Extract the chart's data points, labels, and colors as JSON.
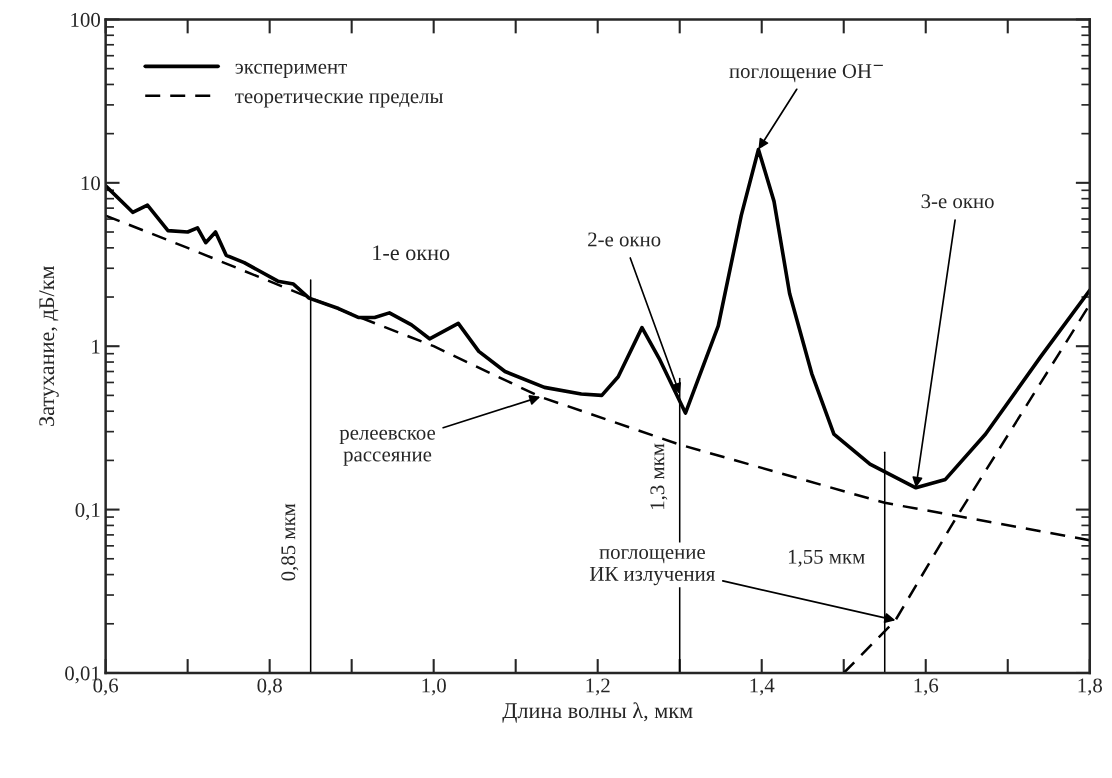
{
  "chart_data": {
    "type": "line",
    "xlabel": "Длина волны λ, мкм",
    "ylabel": "Затухание, дБ/км",
    "log": "y",
    "xlim": [
      0.6,
      1.8
    ],
    "ylim": [
      0.01,
      100
    ],
    "xticks": [
      {
        "value": 0.6,
        "label": "0,6"
      },
      {
        "value": 0.7,
        "label": null
      },
      {
        "value": 0.8,
        "label": "0,8"
      },
      {
        "value": 0.9,
        "label": null
      },
      {
        "value": 1.0,
        "label": "1,0"
      },
      {
        "value": 1.1,
        "label": null
      },
      {
        "value": 1.2,
        "label": "1,2"
      },
      {
        "value": 1.3,
        "label": null
      },
      {
        "value": 1.4,
        "label": "1,4"
      },
      {
        "value": 1.5,
        "label": null
      },
      {
        "value": 1.6,
        "label": "1,6"
      },
      {
        "value": 1.7,
        "label": null
      },
      {
        "value": 1.8,
        "label": "1,8"
      }
    ],
    "yticks": [
      {
        "value": 0.01,
        "label": "0,01"
      },
      {
        "value": 0.1,
        "label": "0,1"
      },
      1,
      10,
      100
    ],
    "grid": false,
    "legend": "top left",
    "series": [
      {
        "name": "эксперимент",
        "color": "#000000",
        "line_style": "solid",
        "x": [
          0.6,
          0.633,
          0.651,
          0.676,
          0.7,
          0.712,
          0.722,
          0.734,
          0.747,
          0.769,
          0.81,
          0.829,
          0.848,
          0.884,
          0.908,
          0.928,
          0.946,
          0.973,
          0.995,
          1.03,
          1.055,
          1.087,
          1.135,
          1.18,
          1.205,
          1.225,
          1.254,
          1.275,
          1.307,
          1.347,
          1.375,
          1.396,
          1.415,
          1.434,
          1.461,
          1.488,
          1.532,
          1.588,
          1.624,
          1.673,
          1.74,
          1.8
        ],
        "values": [
          9.6,
          6.6,
          7.3,
          5.1,
          5.0,
          5.3,
          4.3,
          5.0,
          3.6,
          3.25,
          2.5,
          2.4,
          1.97,
          1.7,
          1.5,
          1.5,
          1.6,
          1.35,
          1.11,
          1.38,
          0.93,
          0.7,
          0.56,
          0.51,
          0.5,
          0.65,
          1.3,
          0.84,
          0.39,
          1.33,
          6.3,
          16,
          7.7,
          2.1,
          0.68,
          0.29,
          0.19,
          0.136,
          0.153,
          0.29,
          0.86,
          2.2
        ]
      },
      {
        "name": "теоретические пределы",
        "color": "#000000",
        "line_style": "dashed",
        "x": [
          0.6,
          0.7,
          0.85,
          1.0,
          1.13,
          1.3,
          1.55,
          1.8
        ],
        "values": [
          6.3,
          4.0,
          1.97,
          1.0,
          0.49,
          0.25,
          0.11,
          0.065
        ]
      },
      {
        "color": "#000000",
        "line_style": "dashed",
        "x": [
          1.5,
          1.563,
          1.637,
          1.8
        ],
        "values": [
          0.01,
          0.021,
          0.089,
          1.8
        ]
      }
    ],
    "ref_lines": [
      {
        "axis": "x",
        "value": 0.85,
        "label": "0,85 мкм",
        "color": "#000000"
      },
      {
        "axis": "x",
        "value": 1.3,
        "label": "1,3 мкм",
        "color": "#000000"
      },
      {
        "axis": "x",
        "value": 1.55,
        "label": "1,55 мкм",
        "color": "#000000"
      }
    ],
    "annotations": [
      "1-е окно",
      {
        "text": "2-е окно",
        "x": 1.3,
        "y": 0.51
      },
      {
        "text": "поглощение OH$^{−}$",
        "x": 1.396,
        "y": 16
      },
      {
        "text": "3-е окно",
        "x": 1.588,
        "y": 0.136
      },
      {
        "text": "релеевское\nрассеяние",
        "x": 1.13,
        "y": 0.49
      },
      {
        "text": "поглощение\nИК излучения",
        "x": 1.563,
        "y": 0.021
      }
    ]
  }
}
